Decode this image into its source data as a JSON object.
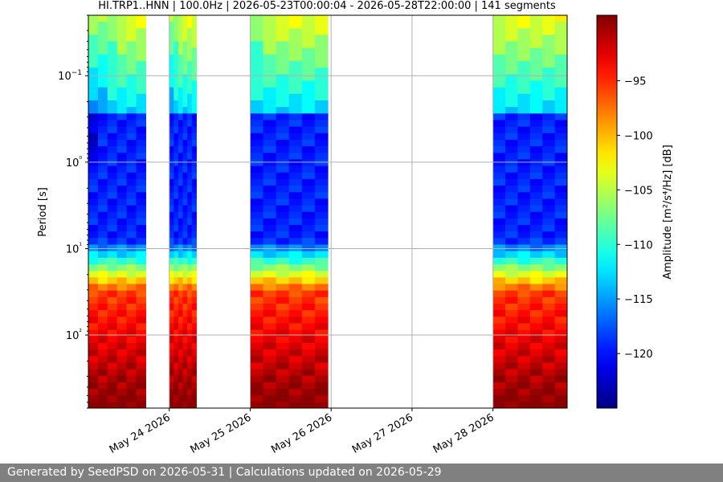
{
  "chart_data": {
    "type": "heatmap",
    "title": "HI.TRP1..HNN | 100.0Hz | 2026-05-23T00:00:04 - 2026-05-28T22:00:00 | 141 segments",
    "ylabel": "Period [s]",
    "y_scale": "log",
    "y_inverted": true,
    "ylim": [
      0.02,
      700
    ],
    "y_ticks": [
      0.1,
      1,
      10,
      100
    ],
    "y_tick_labels": [
      "10−1",
      "10⁰",
      "10¹",
      "10²"
    ],
    "xlim": [
      "2026-05-23T00:00",
      "2026-05-28T22:00"
    ],
    "x_ticks": [
      "2026-05-24",
      "2026-05-25",
      "2026-05-26",
      "2026-05-27",
      "2026-05-28"
    ],
    "x_tick_labels": [
      "May 24 2026",
      "May 25 2026",
      "May 26 2026",
      "May 27 2026",
      "May 28 2026"
    ],
    "colorbar": {
      "label": "Amplitude [m²/s⁴/Hz] [dB]",
      "colormap": "jet",
      "range": [
        -125,
        -89
      ],
      "ticks": [
        -95,
        -100,
        -105,
        -110,
        -115,
        -120
      ],
      "tick_labels": [
        "−95",
        "−100",
        "−105",
        "−110",
        "−115",
        "−120"
      ]
    },
    "data_segments": [
      {
        "start": "2026-05-23T00:00",
        "end": "2026-05-23T17:00"
      },
      {
        "start": "2026-05-24T00:00",
        "end": "2026-05-24T08:00"
      },
      {
        "start": "2026-05-25T00:00",
        "end": "2026-05-25T23:00"
      },
      {
        "start": "2026-05-28T00:00",
        "end": "2026-05-28T22:00"
      }
    ],
    "grid": true
  },
  "footer": {
    "text": "Generated by SeedPSD on 2026-05-31 | Calculations updated on 2026-05-29"
  }
}
